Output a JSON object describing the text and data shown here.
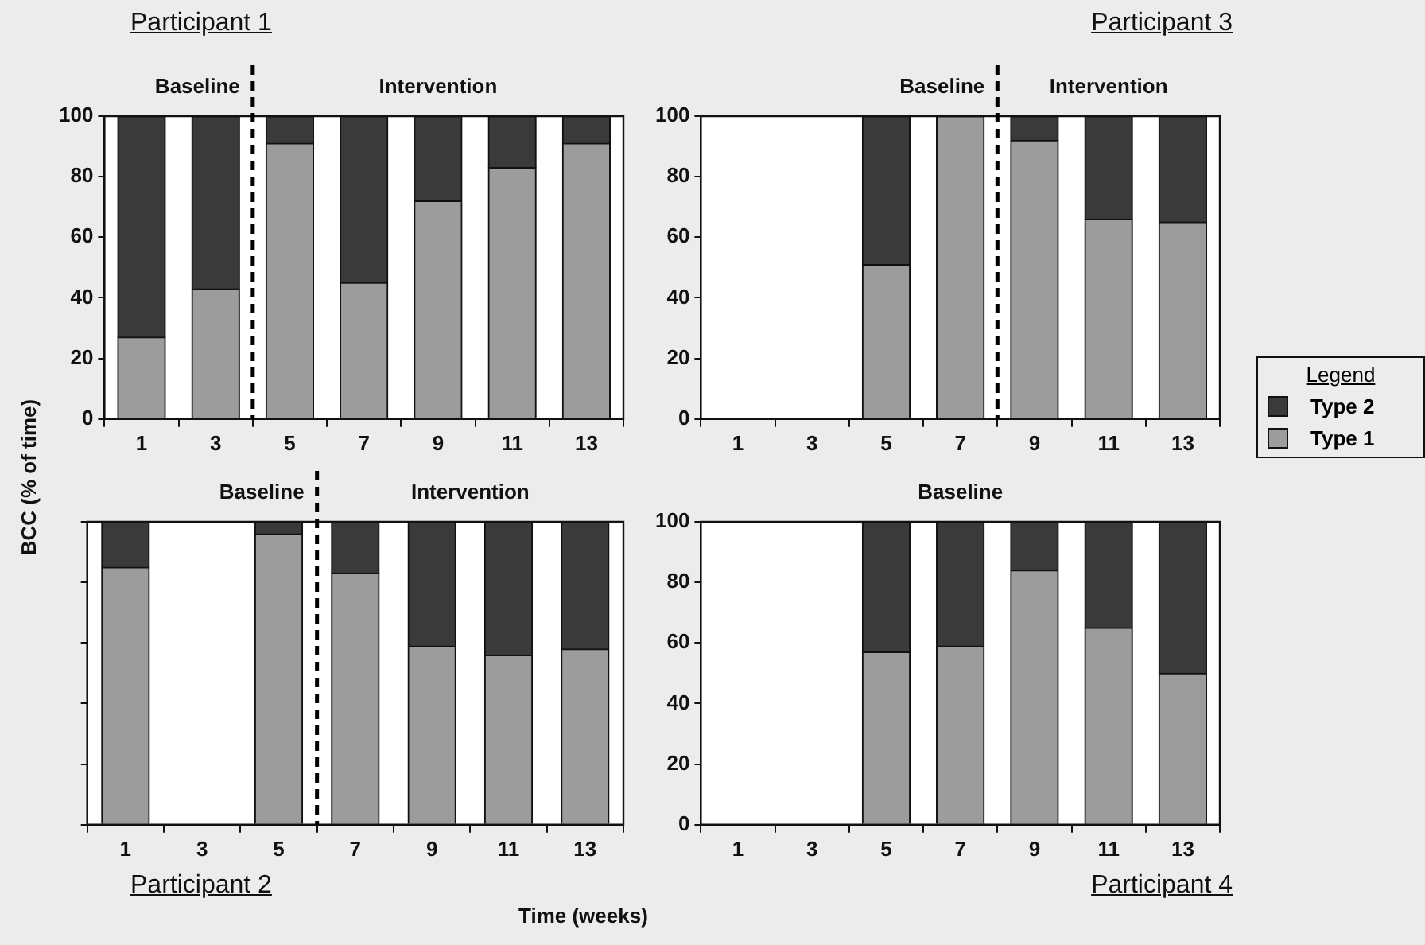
{
  "chart_data": [
    {
      "type": "bar",
      "title": "Participant 1",
      "ylabel": "BCC (% of time)",
      "x": [
        1,
        3,
        5,
        7,
        9,
        11,
        13
      ],
      "xlim": [
        0,
        14
      ],
      "xticks": [
        1,
        3,
        5,
        7,
        9,
        11,
        13
      ],
      "ylim": [
        0,
        100
      ],
      "yticks": [
        0,
        20,
        40,
        60,
        80,
        100
      ],
      "stacked": true,
      "grid": false,
      "legend": false,
      "series": [
        {
          "color": "#9c9c9c",
          "values": [
            27,
            43,
            91,
            45,
            72,
            83,
            91
          ]
        },
        {
          "color": "#3a3a3a",
          "values": [
            73,
            57,
            9,
            55,
            28,
            17,
            9
          ]
        }
      ],
      "ref_lines": [
        {
          "axis": "x",
          "value": 4,
          "color": "#000000",
          "line_style": "dashed"
        }
      ],
      "annotations": [
        "Baseline",
        "Intervention"
      ]
    },
    {
      "type": "bar",
      "title": "Participant 3",
      "legend_title": "Legend",
      "x": [
        5,
        7,
        9,
        11,
        13
      ],
      "xlim": [
        0,
        14
      ],
      "xticks": [
        1,
        3,
        5,
        7,
        9,
        11,
        13
      ],
      "ylim": [
        0,
        100
      ],
      "yticks": [
        0,
        20,
        40,
        60,
        80,
        100
      ],
      "stacked": true,
      "grid": false,
      "legend": "right",
      "series": [
        {
          "name": "Type 1",
          "color": "#9c9c9c",
          "values": [
            51,
            100,
            92,
            66,
            65
          ]
        },
        {
          "name": "Type 2",
          "color": "#3a3a3a",
          "values": [
            49,
            0,
            8,
            34,
            35
          ]
        }
      ],
      "ref_lines": [
        {
          "axis": "x",
          "value": 8,
          "color": "#000000",
          "line_style": "dashed"
        }
      ],
      "annotations": [
        "Baseline",
        "Intervention"
      ]
    },
    {
      "type": "bar",
      "title": "Participant 2",
      "xlabel": "Time (weeks)",
      "x": [
        1,
        5,
        7,
        9,
        11,
        13
      ],
      "xlim": [
        0,
        14
      ],
      "xticks": [
        1,
        3,
        5,
        7,
        9,
        11,
        13
      ],
      "ylim": [
        0,
        100
      ],
      "yticks": [
        0,
        20,
        40,
        60,
        80,
        100
      ],
      "stacked": true,
      "grid": false,
      "legend": false,
      "tick_labels": "x",
      "series": [
        {
          "color": "#9c9c9c",
          "values": [
            85,
            96,
            83,
            59,
            56,
            58
          ]
        },
        {
          "color": "#3a3a3a",
          "values": [
            15,
            4,
            17,
            41,
            44,
            42
          ]
        }
      ],
      "ref_lines": [
        {
          "axis": "x",
          "value": 6,
          "color": "#000000",
          "line_style": "dashed"
        }
      ],
      "annotations": [
        "Baseline",
        "Intervention"
      ]
    },
    {
      "type": "bar",
      "title": "Participant 4",
      "x": [
        5,
        7,
        9,
        11,
        13
      ],
      "xlim": [
        0,
        14
      ],
      "xticks": [
        1,
        3,
        5,
        7,
        9,
        11,
        13
      ],
      "ylim": [
        0,
        100
      ],
      "yticks": [
        0,
        20,
        40,
        60,
        80,
        100
      ],
      "stacked": true,
      "grid": false,
      "legend": false,
      "series": [
        {
          "color": "#9c9c9c",
          "values": [
            57,
            59,
            84,
            65,
            50
          ]
        },
        {
          "color": "#3a3a3a",
          "values": [
            43,
            41,
            16,
            35,
            50
          ]
        }
      ],
      "annotations": [
        "Baseline"
      ]
    }
  ]
}
